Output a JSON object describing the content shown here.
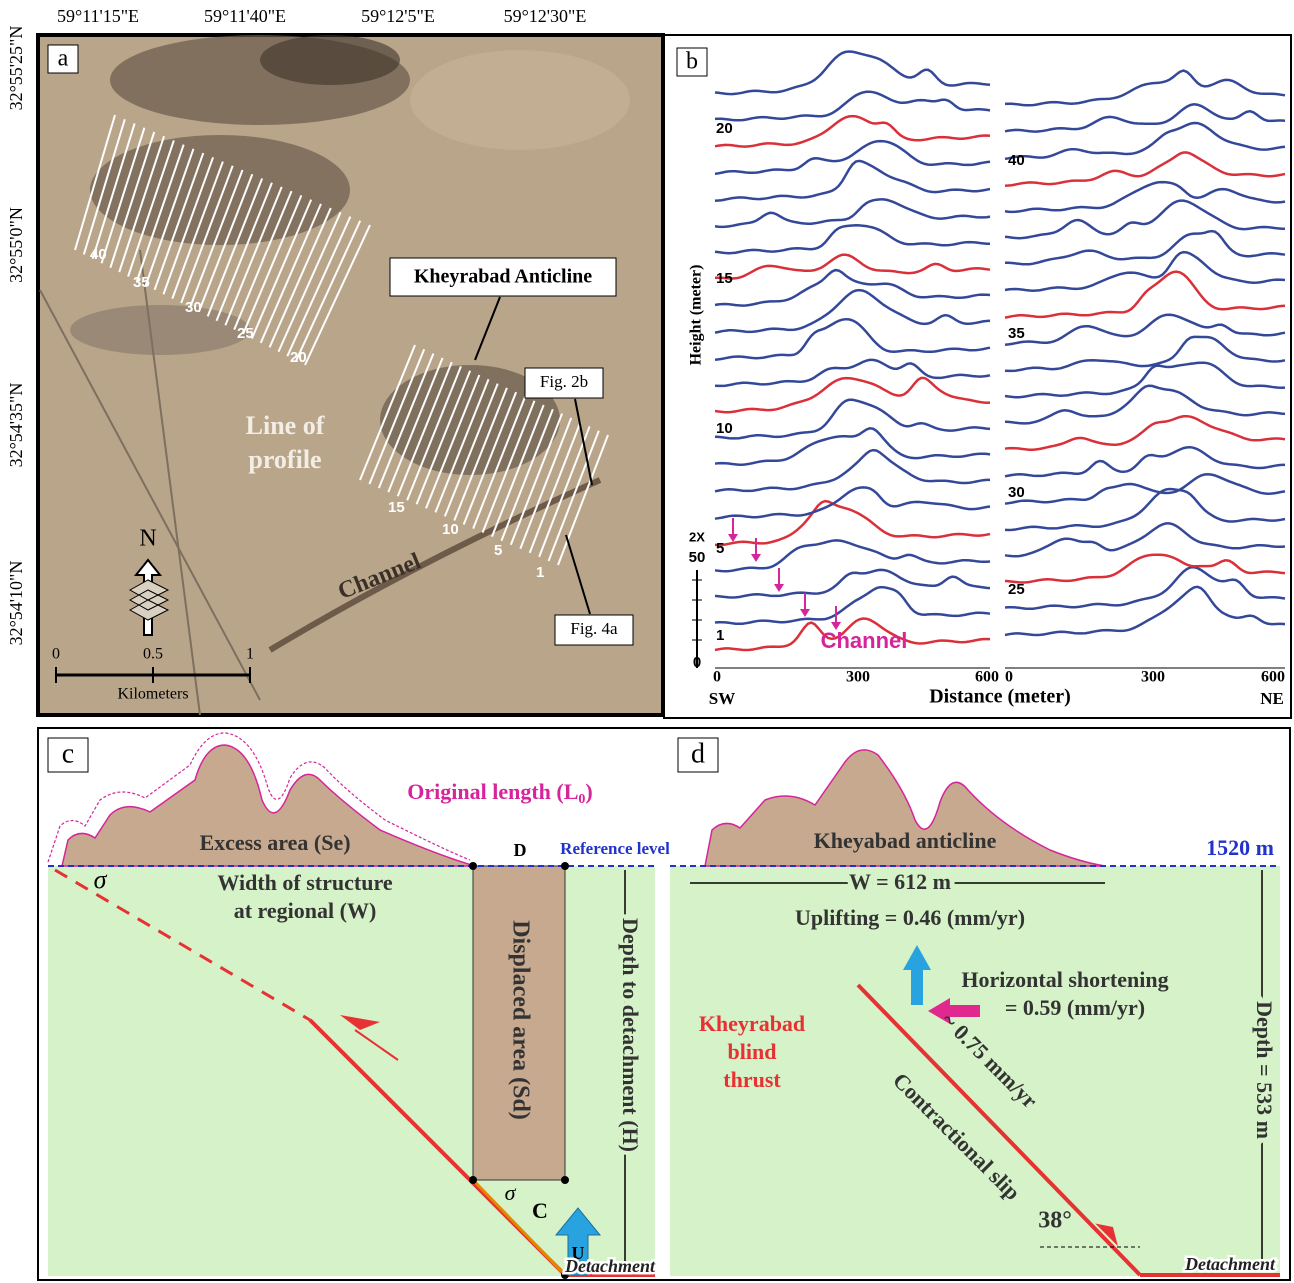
{
  "panel_a": {
    "label": "a",
    "longitudes": [
      "59°11'15\"E",
      "59°11'40\"E",
      "59°12'5\"E",
      "59°12'30\"E"
    ],
    "latitudes": [
      "32°55'25\"N",
      "32°55'0\"N",
      "32°54'35\"N",
      "32°54'10\"N"
    ],
    "anticline": "Kheyrabad Anticline",
    "line_of_profile": [
      "Line of",
      "profile"
    ],
    "fig_2b": "Fig. 2b",
    "fig_4a": "Fig. 4a",
    "channel": "Channel",
    "profile_numbers": [
      "40",
      "35",
      "30",
      "25",
      "20",
      "15",
      "10",
      "5",
      "1"
    ],
    "north": "N",
    "scale_ticks": [
      "0",
      "0.5",
      "1"
    ],
    "scale_unit": "Kilometers"
  },
  "panel_b": {
    "label": "b",
    "y_axis_label": "Height (meter)",
    "x_axis_label": "Distance (meter)",
    "sw": "SW",
    "ne": "NE",
    "x_ticks_left": [
      "0",
      "300",
      "600"
    ],
    "x_ticks_right": [
      "0",
      "300",
      "600"
    ],
    "vertical_exaggeration": "2X",
    "scale_ticks": [
      "50",
      "0"
    ],
    "left_profile_labels": [
      "20",
      "15",
      "10",
      "5",
      "1"
    ],
    "right_profile_labels": [
      "40",
      "35",
      "30",
      "25"
    ],
    "channel": "Channel"
  },
  "panel_c": {
    "label": "c",
    "original_length": [
      "Original length (L",
      "0",
      ")"
    ],
    "excess_area": "Excess area (Se)",
    "d_point": "D",
    "reference_level": "Reference level",
    "width": [
      "Width of structure",
      "at regional (W)"
    ],
    "sigma": "σ",
    "displaced_area": "Displaced area (Sd)",
    "depth": "Depth to detachment (H)",
    "c_point": "C",
    "u": "U",
    "detachment": "Detachment"
  },
  "panel_d": {
    "label": "d",
    "anticline": "Kheyabad anticline",
    "reference": "1520 m",
    "width": "W = 612 m",
    "uplifting": "Uplifting = 0.46 (mm/yr)",
    "shortening": [
      "Horizontal shortening",
      "= 0.59 (mm/yr)"
    ],
    "thrust": [
      "Kheyrabad",
      "blind",
      "thrust"
    ],
    "slip_rate": "~ 0.75  mm/yr",
    "slip": "Contractional slip",
    "angle": "38°",
    "depth": "Depth = 533 m",
    "detachment": "Detachment"
  }
}
